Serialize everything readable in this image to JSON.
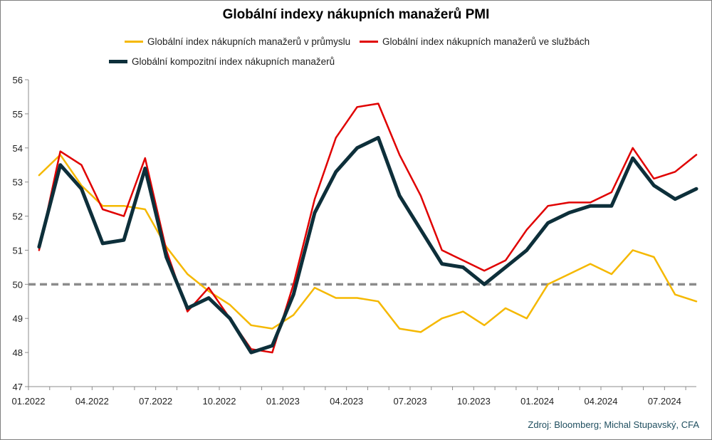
{
  "chart_data": {
    "type": "line",
    "title": "Globální indexy nákupních manažerů PMI",
    "source": "Zdroj: Bloomberg; Michal Stupavský, CFA",
    "ylim": [
      47,
      56
    ],
    "yticks": [
      "47",
      "48",
      "49",
      "50",
      "51",
      "52",
      "53",
      "54",
      "55",
      "56"
    ],
    "xticks": [
      "01.2022",
      "04.2022",
      "07.2022",
      "10.2022",
      "01.2023",
      "04.2023",
      "07.2023",
      "10.2023",
      "01.2024",
      "04.2024",
      "07.2024"
    ],
    "x": [
      "01.2022",
      "02.2022",
      "03.2022",
      "04.2022",
      "05.2022",
      "06.2022",
      "07.2022",
      "08.2022",
      "09.2022",
      "10.2022",
      "11.2022",
      "12.2022",
      "01.2023",
      "02.2023",
      "03.2023",
      "04.2023",
      "05.2023",
      "06.2023",
      "07.2023",
      "08.2023",
      "09.2023",
      "10.2023",
      "11.2023",
      "12.2023",
      "01.2024",
      "02.2024",
      "03.2024",
      "04.2024",
      "05.2024",
      "06.2024",
      "07.2024",
      "08.2024"
    ],
    "reference_line": 50,
    "legend_position": "top",
    "series": [
      {
        "name": "Globální index nákupních manažerů v průmyslu",
        "color": "#f5b800",
        "values": [
          53.2,
          53.8,
          52.9,
          52.3,
          52.3,
          52.2,
          51.1,
          50.3,
          49.8,
          49.4,
          48.8,
          48.7,
          49.1,
          49.9,
          49.6,
          49.6,
          49.5,
          48.7,
          48.6,
          49.0,
          49.2,
          48.8,
          49.3,
          49.0,
          50.0,
          50.3,
          50.6,
          50.3,
          51.0,
          50.8,
          49.7,
          49.5
        ]
      },
      {
        "name": "Globální index nákupních manažerů ve službách",
        "color": "#e00000",
        "values": [
          51.0,
          53.9,
          53.5,
          52.2,
          52.0,
          53.7,
          51.0,
          49.2,
          49.9,
          49.0,
          48.1,
          48.0,
          50.0,
          52.5,
          54.3,
          55.2,
          55.3,
          53.8,
          52.6,
          51.0,
          50.7,
          50.4,
          50.7,
          51.6,
          52.3,
          52.4,
          52.4,
          52.7,
          54.0,
          53.1,
          53.3,
          53.8
        ]
      },
      {
        "name": "Globální kompozitní index nákupních manažerů",
        "color": "#0d2f3a",
        "values": [
          51.1,
          53.5,
          52.8,
          51.2,
          51.3,
          53.4,
          50.8,
          49.3,
          49.6,
          49.0,
          48.0,
          48.2,
          49.7,
          52.1,
          53.3,
          54.0,
          54.3,
          52.6,
          51.6,
          50.6,
          50.5,
          50.0,
          50.5,
          51.0,
          51.8,
          52.1,
          52.3,
          52.3,
          53.7,
          52.9,
          52.5,
          52.8
        ]
      }
    ]
  }
}
